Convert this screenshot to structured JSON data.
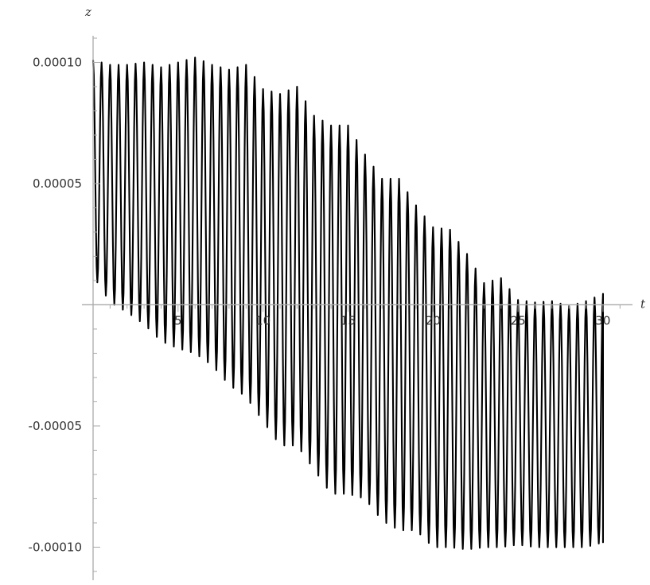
{
  "chart_data": {
    "type": "line",
    "title": "",
    "xlabel": "t",
    "ylabel": "z",
    "xlim": [
      0,
      31.5
    ],
    "ylim": [
      -0.000112,
      0.00011
    ],
    "x_ticks": [
      5,
      10,
      15,
      20,
      25,
      30
    ],
    "x_tick_labels": [
      "5",
      "10",
      "15",
      "20",
      "25",
      "30"
    ],
    "y_ticks": [
      0.0001,
      5e-05,
      -5e-05,
      -0.0001
    ],
    "y_tick_labels": [
      "0.00010",
      "0.00005",
      "-0.00005",
      "-0.00010"
    ],
    "grid": false,
    "legend": "none",
    "series": [
      {
        "line_color": "#000000",
        "oscillation_period": 0.5,
        "upper_envelope": {
          "x": [
            0,
            1,
            2,
            3,
            4,
            5,
            6,
            7,
            8,
            9,
            10,
            11,
            12,
            13,
            14,
            15,
            16,
            17,
            18,
            19,
            20,
            21,
            22,
            23,
            24,
            25,
            26,
            27,
            28,
            29,
            30
          ],
          "y": [
            0.000101,
            9.9e-05,
            9.9e-05,
            0.0001,
            9.8e-05,
            0.0001,
            0.000102,
            9.9e-05,
            9.7e-05,
            9.9e-05,
            8.9e-05,
            8.7e-05,
            9e-05,
            7.8e-05,
            7.4e-05,
            7.4e-05,
            6.2e-05,
            5.2e-05,
            5.2e-05,
            4.1e-05,
            3.2e-05,
            3.1e-05,
            2.1e-05,
            9e-06,
            1.1e-05,
            2e-06,
            1e-06,
            1.5e-06,
            -5e-07,
            1.5e-06,
            4.5e-06
          ]
        },
        "lower_envelope": {
          "x": [
            0,
            1,
            2,
            3,
            4,
            5,
            6,
            7,
            8,
            9,
            10,
            11,
            12,
            13,
            14,
            15,
            16,
            17,
            18,
            19,
            20,
            21,
            22,
            23,
            24,
            25,
            26,
            27,
            28,
            29,
            30
          ],
          "y": [
            1.2e-05,
            1e-06,
            -3e-06,
            -8e-06,
            -1.5e-05,
            -1.8e-05,
            -2e-05,
            -2.5e-05,
            -3.3e-05,
            -3.8e-05,
            -4.8e-05,
            -5.8e-05,
            -5.8e-05,
            -6.8e-05,
            -7.8e-05,
            -7.8e-05,
            -8e-05,
            -8.9e-05,
            -9.3e-05,
            -9.3e-05,
            -0.0001,
            -0.0001,
            -0.000101,
            -0.0001,
            -0.0001,
            -9.9e-05,
            -0.0001,
            -0.0001,
            -0.0001,
            -0.0001,
            -9.8e-05
          ]
        }
      }
    ]
  }
}
